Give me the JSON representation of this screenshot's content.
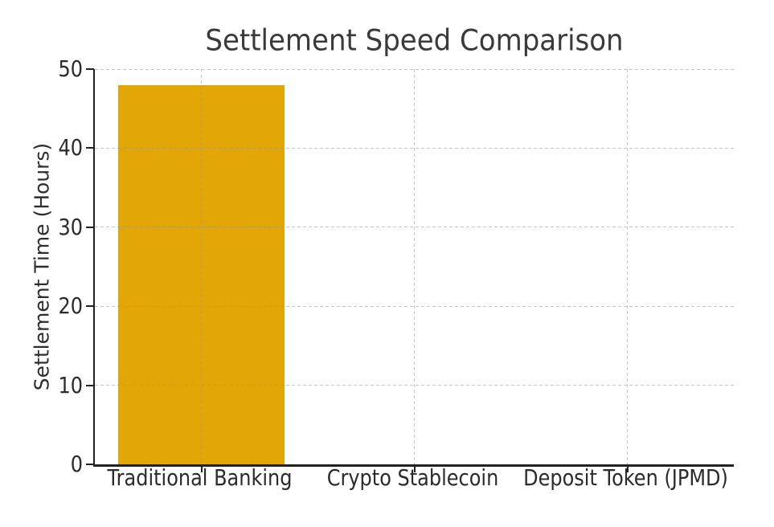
{
  "chart_data": {
    "type": "bar",
    "title": "Settlement Speed Comparison",
    "ylabel": "Settlement Time (Hours)",
    "xlabel": "",
    "categories": [
      "Traditional Banking",
      "Crypto Stablecoin",
      "Deposit Token (JPMD)"
    ],
    "values": [
      48,
      0,
      0
    ],
    "ylim": [
      0,
      50
    ],
    "yticks": [
      0,
      10,
      20,
      30,
      40,
      50
    ],
    "bar_color": "#E2A706",
    "background_color": "#FFFFFF",
    "text_color": "#2B2B2B",
    "title_color": "#3A3A3A",
    "spine_color": "#222222",
    "grid": {
      "visible": true,
      "style": "dashed",
      "color": "#BDBDBD",
      "drawn_above_bars": true
    },
    "spines": [
      "left",
      "bottom"
    ],
    "legend_position": "none"
  }
}
